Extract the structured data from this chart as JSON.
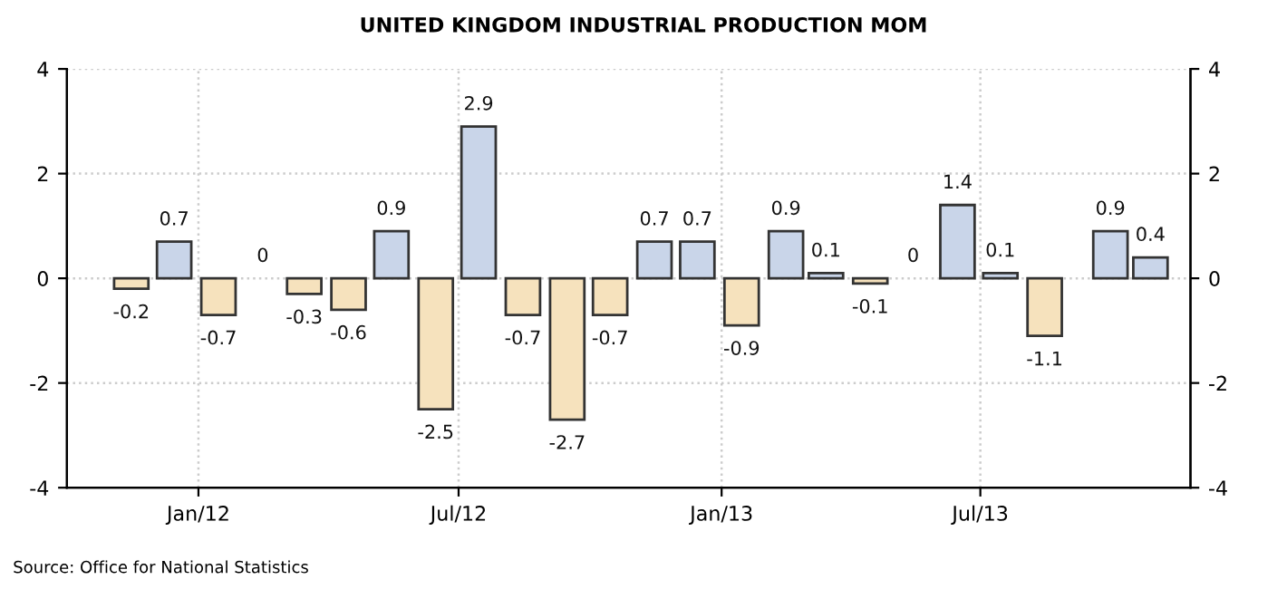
{
  "chart_data": {
    "type": "bar",
    "title": "UNITED KINGDOM INDUSTRIAL PRODUCTION MOM",
    "x": [
      "2011-11-15",
      "2011-12-15",
      "2012-01-15",
      "2012-02-15",
      "2012-03-15",
      "2012-04-15",
      "2012-05-15",
      "2012-06-15",
      "2012-07-15",
      "2012-08-15",
      "2012-09-15",
      "2012-10-15",
      "2012-11-15",
      "2012-12-15",
      "2013-01-15",
      "2013-02-15",
      "2013-03-15",
      "2013-04-15",
      "2013-05-15",
      "2013-06-15",
      "2013-07-15",
      "2013-08-15",
      "2013-09-30",
      "2013-10-28"
    ],
    "values": [
      -0.2,
      0.7,
      -0.7,
      0,
      -0.3,
      -0.6,
      0.9,
      -2.5,
      2.9,
      -0.7,
      -2.7,
      -0.7,
      0.7,
      0.7,
      -0.9,
      0.9,
      0.1,
      -0.1,
      0,
      1.4,
      0.1,
      -1.1,
      0.9,
      0.4
    ],
    "colors": [
      "#f6e2bd",
      "#c9d5e9",
      "#f6e2bd",
      "#c9d5e9",
      "#f6e2bd",
      "#f6e2bd",
      "#c9d5e9",
      "#f6e2bd",
      "#c9d5e9",
      "#f6e2bd",
      "#f6e2bd",
      "#f6e2bd",
      "#c9d5e9",
      "#c9d5e9",
      "#f6e2bd",
      "#c9d5e9",
      "#c9d5e9",
      "#f6e2bd",
      "#c9d5e9",
      "#c9d5e9",
      "#c9d5e9",
      "#f6e2bd",
      "#c9d5e9",
      "#c9d5e9"
    ],
    "data_labels": true,
    "xlim": [
      "2011-10-01",
      "2013-11-25"
    ],
    "xticks": [
      {
        "value": "2012-01-01",
        "label": "Jan/12"
      },
      {
        "value": "2012-07-01",
        "label": "Jul/12"
      },
      {
        "value": "2013-01-01",
        "label": "Jan/13"
      },
      {
        "value": "2013-07-01",
        "label": "Jul/13"
      }
    ],
    "ylim": [
      -4,
      4
    ],
    "yticks": [
      -4,
      -2,
      0,
      2,
      4
    ],
    "y2lim": [
      -4,
      4
    ],
    "y2ticks": [
      -4,
      -2,
      0,
      2,
      4
    ],
    "grid": true,
    "annotations": [
      "Source: Office for National Statistics"
    ]
  }
}
